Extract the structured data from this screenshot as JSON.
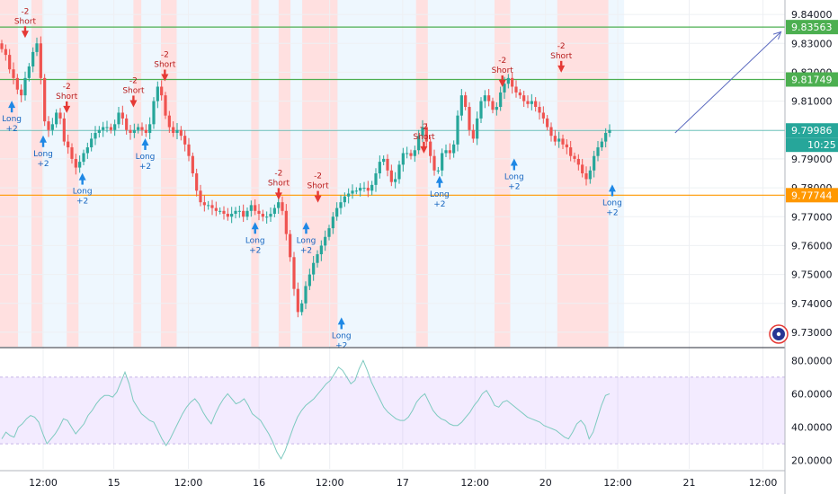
{
  "chart_data": [
    {
      "type": "candlestick",
      "title": "",
      "xlabel": "",
      "ylabel": "",
      "ylim": [
        9.725,
        9.845
      ],
      "grid": true,
      "x_ticks": [
        "12:00",
        "15",
        "12:00",
        "16",
        "12:00",
        "17",
        "12:00",
        "20",
        "12:00",
        "21",
        "12:00"
      ],
      "y_ticks": [
        "9.84000",
        "9.83000",
        "9.82000",
        "9.81000",
        "9.80000",
        "9.79000",
        "9.78000",
        "9.77000",
        "9.76000",
        "9.75000",
        "9.74000",
        "9.73000"
      ],
      "series": [
        {
          "values": [
            9.828,
            9.826,
            9.821,
            9.818,
            9.814,
            9.812,
            9.818,
            9.822,
            9.827,
            9.83,
            9.818,
            9.803,
            9.8,
            9.802,
            9.806,
            9.804,
            9.796,
            9.794,
            9.79,
            9.787,
            9.789,
            9.792,
            9.794,
            9.797,
            9.799,
            9.8,
            9.801,
            9.801,
            9.8,
            9.802,
            9.806,
            9.804,
            9.8,
            9.799,
            9.8,
            9.801,
            9.8,
            9.799,
            9.802,
            9.81,
            9.815,
            9.812,
            9.805,
            9.801,
            9.799,
            9.8,
            9.798,
            9.795,
            9.791,
            9.785,
            9.779,
            9.775,
            9.774,
            9.774,
            9.773,
            9.772,
            9.772,
            9.771,
            9.77,
            9.771,
            9.772,
            9.772,
            9.77,
            9.772,
            9.774,
            9.772,
            9.771,
            9.77,
            9.77,
            9.771,
            9.773,
            9.775,
            9.772,
            9.764,
            9.756,
            9.745,
            9.737,
            9.74,
            9.746,
            9.75,
            9.754,
            9.757,
            9.76,
            9.763,
            9.766,
            9.77,
            9.773,
            9.775,
            9.777,
            9.778,
            9.779,
            9.779,
            9.78,
            9.78,
            9.779,
            9.781,
            9.785,
            9.789,
            9.79,
            9.786,
            9.782,
            9.783,
            9.788,
            9.792,
            9.792,
            9.791,
            9.793,
            9.798,
            9.801,
            9.796,
            9.791,
            9.786,
            9.786,
            9.792,
            9.793,
            9.792,
            9.795,
            9.805,
            9.812,
            9.808,
            9.8,
            9.797,
            9.804,
            9.81,
            9.812,
            9.81,
            9.807,
            9.808,
            9.813,
            9.816,
            9.818,
            9.815,
            9.813,
            9.812,
            9.81,
            9.809,
            9.81,
            9.808,
            9.806,
            9.804,
            9.801,
            9.798,
            9.796,
            9.797,
            9.795,
            9.794,
            9.791,
            9.79,
            9.788,
            9.785,
            9.783,
            9.786,
            9.791,
            9.794,
            9.796,
            9.799,
            9.8
          ]
        }
      ],
      "horizontal_levels": [
        {
          "price": "9.83563",
          "value": 9.83563,
          "color": "#4caf50"
        },
        {
          "price": "9.81749",
          "value": 9.81749,
          "color": "#4caf50"
        },
        {
          "price": "9.79986",
          "value": 9.79986,
          "color": "#26a69a"
        },
        {
          "price": "9.77744",
          "value": 9.77744,
          "color": "#ff9800"
        }
      ],
      "countdown": "10:25",
      "signals": [
        {
          "kind": "short",
          "label": "Short",
          "qty": "-2",
          "at": 0.032
        },
        {
          "kind": "long",
          "label": "Long",
          "qty": "+2",
          "at": 0.015
        },
        {
          "kind": "long",
          "label": "Long",
          "qty": "+2",
          "at": 0.055
        },
        {
          "kind": "short",
          "label": "Short",
          "qty": "-2",
          "at": 0.085
        },
        {
          "kind": "long",
          "label": "Long",
          "qty": "+2",
          "at": 0.105
        },
        {
          "kind": "short",
          "label": "Short",
          "qty": "-2",
          "at": 0.17
        },
        {
          "kind": "long",
          "label": "Long",
          "qty": "+2",
          "at": 0.185
        },
        {
          "kind": "short",
          "label": "Short",
          "qty": "-2",
          "at": 0.21
        },
        {
          "kind": "long",
          "label": "Long",
          "qty": "+2",
          "at": 0.325
        },
        {
          "kind": "short",
          "label": "Short",
          "qty": "-2",
          "at": 0.355
        },
        {
          "kind": "long",
          "label": "Long",
          "qty": "+2",
          "at": 0.39
        },
        {
          "kind": "short",
          "label": "Short",
          "qty": "-2",
          "at": 0.405
        },
        {
          "kind": "long",
          "label": "Long",
          "qty": "+2",
          "at": 0.435
        },
        {
          "kind": "short",
          "label": "Short",
          "qty": "-2",
          "at": 0.54
        },
        {
          "kind": "long",
          "label": "Long",
          "qty": "+2",
          "at": 0.56
        },
        {
          "kind": "short",
          "label": "Short",
          "qty": "-2",
          "at": 0.64
        },
        {
          "kind": "long",
          "label": "Long",
          "qty": "+2",
          "at": 0.655
        },
        {
          "kind": "short",
          "label": "Short",
          "qty": "-2",
          "at": 0.715
        },
        {
          "kind": "long",
          "label": "Long",
          "qty": "+2",
          "at": 0.78
        }
      ],
      "signal_prices": {
        "0.032": 9.83,
        "0.015": 9.812,
        "0.055": 9.8,
        "0.085": 9.804,
        "0.105": 9.787,
        "0.17": 9.806,
        "0.185": 9.799,
        "0.21": 9.815,
        "0.325": 9.77,
        "0.355": 9.774,
        "0.39": 9.77,
        "0.405": 9.773,
        "0.435": 9.737,
        "0.54": 9.79,
        "0.56": 9.786,
        "0.64": 9.813,
        "0.655": 9.792,
        "0.715": 9.818,
        "0.78": 9.783
      },
      "shade_bands": [
        {
          "from": 0.0,
          "to": 0.023,
          "kind": "short"
        },
        {
          "from": 0.023,
          "to": 0.04,
          "kind": "long"
        },
        {
          "from": 0.04,
          "to": 0.054,
          "kind": "short"
        },
        {
          "from": 0.054,
          "to": 0.085,
          "kind": "long"
        },
        {
          "from": 0.085,
          "to": 0.1,
          "kind": "short"
        },
        {
          "from": 0.1,
          "to": 0.17,
          "kind": "long"
        },
        {
          "from": 0.17,
          "to": 0.18,
          "kind": "short"
        },
        {
          "from": 0.18,
          "to": 0.205,
          "kind": "long"
        },
        {
          "from": 0.205,
          "to": 0.225,
          "kind": "short"
        },
        {
          "from": 0.225,
          "to": 0.32,
          "kind": "long"
        },
        {
          "from": 0.32,
          "to": 0.33,
          "kind": "short"
        },
        {
          "from": 0.33,
          "to": 0.355,
          "kind": "long"
        },
        {
          "from": 0.355,
          "to": 0.37,
          "kind": "short"
        },
        {
          "from": 0.37,
          "to": 0.385,
          "kind": "long"
        },
        {
          "from": 0.385,
          "to": 0.43,
          "kind": "short"
        },
        {
          "from": 0.43,
          "to": 0.53,
          "kind": "long"
        },
        {
          "from": 0.53,
          "to": 0.545,
          "kind": "short"
        },
        {
          "from": 0.545,
          "to": 0.63,
          "kind": "long"
        },
        {
          "from": 0.63,
          "to": 0.65,
          "kind": "short"
        },
        {
          "from": 0.65,
          "to": 0.71,
          "kind": "long"
        },
        {
          "from": 0.71,
          "to": 0.775,
          "kind": "short"
        },
        {
          "from": 0.775,
          "to": 0.795,
          "kind": "long"
        }
      ],
      "trend_arrow": {
        "from": [
          0.86,
          9.799
        ],
        "to": [
          0.995,
          9.834
        ]
      }
    },
    {
      "type": "line",
      "title": "",
      "xlabel": "",
      "ylabel": "",
      "ylim": [
        15,
        85
      ],
      "grid": true,
      "y_ticks": [
        "80.0000",
        "60.0000",
        "40.0000",
        "20.0000"
      ],
      "band": [
        30,
        70
      ],
      "series": [
        {
          "values": [
            33,
            37,
            35,
            34,
            40,
            42,
            45,
            47,
            46,
            43,
            36,
            30,
            33,
            36,
            40,
            45,
            44,
            40,
            36,
            39,
            42,
            47,
            50,
            54,
            57,
            59,
            59,
            58,
            61,
            67,
            73,
            66,
            56,
            52,
            48,
            46,
            44,
            43,
            38,
            33,
            29,
            33,
            38,
            43,
            48,
            52,
            55,
            57,
            54,
            49,
            45,
            42,
            48,
            53,
            57,
            60,
            57,
            54,
            55,
            57,
            53,
            48,
            46,
            44,
            40,
            36,
            31,
            25,
            21,
            26,
            33,
            40,
            46,
            50,
            53,
            55,
            57,
            60,
            63,
            66,
            68,
            72,
            76,
            74,
            70,
            66,
            68,
            75,
            80,
            74,
            67,
            62,
            57,
            52,
            49,
            47,
            45,
            44,
            44,
            46,
            50,
            55,
            58,
            60,
            55,
            50,
            47,
            45,
            44,
            42,
            41,
            41,
            43,
            46,
            49,
            53,
            56,
            60,
            62,
            58,
            53,
            52,
            55,
            56,
            54,
            52,
            50,
            48,
            46,
            45,
            44,
            43,
            41,
            40,
            39,
            38,
            36,
            34,
            33,
            37,
            42,
            44,
            41,
            33,
            37,
            45,
            53,
            59,
            60
          ]
        }
      ]
    }
  ]
}
